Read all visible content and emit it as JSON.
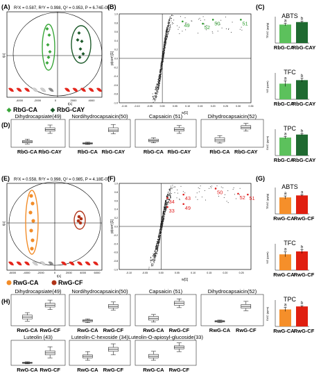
{
  "panels": {
    "A": {
      "label": "(A)",
      "stats": "R²X = 0.587, R²Y = 0.998, Q² = 0.953, P = 6.74E-05",
      "x_label": "t[1]",
      "y_label": "t[o]",
      "x_ticks": [
        "-4000",
        "-2000",
        "0",
        "2000",
        "4000"
      ],
      "legend": [
        {
          "label": "RbG-CA",
          "color": "#39a639"
        },
        {
          "label": "RbG-CAY",
          "color": "#1c5a2a"
        }
      ]
    },
    "B": {
      "label": "(B)",
      "x_label": "w[1]",
      "y_label": "p(corr)[1]",
      "x_ticks": [
        "-0.15",
        "-0.10",
        "-0.05",
        "0.00",
        "0.05",
        "0.10",
        "0.15",
        "0.20",
        "0.25",
        "0.30",
        "0.35"
      ],
      "y_ticks": [
        "1.0",
        "0.8",
        "0.6",
        "0.4",
        "0.2",
        "0.0",
        "-0.2",
        "-0.4",
        "-0.6",
        "-0.8",
        "-1.0"
      ],
      "labels": [
        {
          "text": "50",
          "color": "#2e9c2e"
        },
        {
          "text": "51",
          "color": "#2e9c2e"
        },
        {
          "text": "49",
          "color": "#2e9c2e"
        },
        {
          "text": "52",
          "color": "#2e9c2e"
        }
      ]
    },
    "C": {
      "label": "(C)",
      "charts": [
        {
          "title": "ABTS",
          "ylabel": "TEAC (μg/g)",
          "cats": [
            "RbG-CA",
            "RbG-CAY"
          ],
          "values": [
            0.185,
            0.21
          ],
          "errors": [
            0.012,
            0.008
          ],
          "sig": [
            "a",
            "b"
          ],
          "ymax": 0.25,
          "colors": [
            "#5cc15c",
            "#1f6a31"
          ]
        },
        {
          "title": "TFC",
          "ylabel": "NE (ppm)",
          "cats": [
            "RbG-CA",
            "RbG-CAY"
          ],
          "values": [
            9.4,
            11.5
          ],
          "errors": [
            1.7,
            1.1
          ],
          "sig": [
            "a",
            "b"
          ],
          "ymax": 15,
          "colors": [
            "#5cc15c",
            "#1f6a31"
          ]
        },
        {
          "title": "TPC",
          "ylabel": "GAC (ppm)",
          "cats": [
            "RbG-CA",
            "RbG-CAY"
          ],
          "values": [
            36,
            42
          ],
          "errors": [
            2.2,
            1.8
          ],
          "sig": [
            "a",
            "b"
          ],
          "ymax": 50,
          "colors": [
            "#5cc15c",
            "#1f6a31"
          ]
        }
      ]
    },
    "D": {
      "label": "(D)",
      "boxes": [
        {
          "title": "Dihydrocapsiate(49)",
          "cats": [
            "RbG-CA",
            "RbG-CAY"
          ],
          "stats": [
            [
              0.12,
              0.16,
              0.2,
              0.24,
              0.29
            ],
            [
              0.5,
              0.58,
              0.64,
              0.7,
              0.8
            ]
          ]
        },
        {
          "title": "Nordihydrocapsaicin(50)",
          "cats": [
            "RbG-CA",
            "RbG-CAY"
          ],
          "stats": [
            [
              0.1,
              0.12,
              0.14,
              0.16,
              0.18
            ],
            [
              0.48,
              0.56,
              0.62,
              0.7,
              0.82
            ]
          ]
        },
        {
          "title": "Capsaicin (51)",
          "cats": [
            "RbG-CA",
            "RbG-CAY"
          ],
          "stats": [
            [
              0.16,
              0.2,
              0.24,
              0.29,
              0.34
            ],
            [
              0.5,
              0.58,
              0.64,
              0.7,
              0.78
            ]
          ]
        },
        {
          "title": "Dihydrocapsaicin(52)",
          "cats": [
            "RbG-CA",
            "RbG-CAY"
          ],
          "stats": [
            [
              0.15,
              0.2,
              0.26,
              0.34,
              0.42
            ],
            [
              0.58,
              0.66,
              0.72,
              0.78,
              0.86
            ]
          ]
        }
      ]
    },
    "E": {
      "label": "(E)",
      "stats": "R²X = 0.558, R²Y = 0.998, Q² = 0.985, P = 4.18E-07",
      "x_label": "t[1]",
      "y_label": "t[o]",
      "x_ticks": [
        "-6000",
        "-4000",
        "-2000",
        "0",
        "2000",
        "4000",
        "6000"
      ],
      "legend": [
        {
          "label": "RwG-CA",
          "color": "#f28c28"
        },
        {
          "label": "RwG-CF",
          "color": "#b03318"
        }
      ]
    },
    "F": {
      "label": "(F)",
      "x_label": "w[1]",
      "y_label": "p(corr)[1]",
      "x_ticks": [
        "-0.10",
        "-0.05",
        "0.00",
        "0.05",
        "0.10",
        "0.15",
        "0.20",
        "0.25"
      ],
      "y_ticks": [
        "1.0",
        "0.8",
        "0.6",
        "0.4",
        "0.2",
        "0.0",
        "-0.2",
        "-0.4",
        "-0.6",
        "-0.8",
        "-1.0"
      ],
      "labels": [
        {
          "text": "50",
          "color": "#e02020"
        },
        {
          "text": "43",
          "color": "#e02020"
        },
        {
          "text": "52",
          "color": "#e02020"
        },
        {
          "text": "51",
          "color": "#e02020"
        },
        {
          "text": "34",
          "color": "#e02020"
        },
        {
          "text": "49",
          "color": "#e02020"
        },
        {
          "text": "33",
          "color": "#e02020"
        }
      ]
    },
    "G": {
      "label": "(G)",
      "charts": [
        {
          "title": "ABTS",
          "ylabel": "TEAC (μg/g)",
          "cats": [
            "RwG-CA",
            "RwG-CF"
          ],
          "values": [
            0.165,
            0.185
          ],
          "errors": [
            0.015,
            0.007
          ],
          "sig": [
            "a",
            "a"
          ],
          "ymax": 0.25,
          "colors": [
            "#f58f2a",
            "#e01f10"
          ]
        },
        {
          "title": "TFC",
          "ylabel": "NE (ppm)",
          "cats": [
            "RwG-CA",
            "RwG-CF"
          ],
          "values": [
            7.6,
            9.0
          ],
          "errors": [
            1.2,
            0.9
          ],
          "sig": [
            "a",
            "b"
          ],
          "ymax": 12,
          "colors": [
            "#f58f2a",
            "#e01f10"
          ]
        },
        {
          "title": "TPC",
          "ylabel": "GAC (ppm)",
          "cats": [
            "RwG-CA",
            "RwG-CF"
          ],
          "values": [
            34,
            40
          ],
          "errors": [
            4,
            1.5
          ],
          "sig": [
            "a",
            "b"
          ],
          "ymax": 50,
          "colors": [
            "#f58f2a",
            "#e01f10"
          ]
        }
      ]
    },
    "H": {
      "label": "(H)",
      "boxes": [
        {
          "title": "Dihydrocapsiate(49)",
          "cats": [
            "RwG-CA",
            "RwG-CF"
          ],
          "stats": [
            [
              0.15,
              0.22,
              0.28,
              0.34,
              0.42
            ],
            [
              0.52,
              0.6,
              0.66,
              0.72,
              0.82
            ]
          ]
        },
        {
          "title": "Nordihydrocapsaicin(50)",
          "cats": [
            "RwG-CA",
            "RwG-CF"
          ],
          "stats": [
            [
              0.1,
              0.13,
              0.16,
              0.19,
              0.22
            ],
            [
              0.5,
              0.57,
              0.62,
              0.68,
              0.76
            ]
          ]
        },
        {
          "title": "Capsaicin (51)",
          "cats": [
            "RwG-CA",
            "RwG-CF"
          ],
          "stats": [
            [
              0.12,
              0.18,
              0.24,
              0.3,
              0.36
            ],
            [
              0.58,
              0.66,
              0.72,
              0.78,
              0.86
            ]
          ]
        },
        {
          "title": "Dihydrocapsaicin(52)",
          "cats": [
            "RwG-CA",
            "RwG-CF"
          ],
          "stats": [
            [
              0.1,
              0.12,
              0.14,
              0.16,
              0.18
            ],
            [
              0.48,
              0.56,
              0.62,
              0.68,
              0.78
            ]
          ]
        },
        {
          "title": "Luteolin (43)",
          "cats": [
            "RwG-CA",
            "RwG-CF"
          ],
          "stats": [
            [
              0.06,
              0.08,
              0.1,
              0.12,
              0.14
            ],
            [
              0.3,
              0.42,
              0.5,
              0.58,
              0.74
            ]
          ]
        },
        {
          "title": "Luteolin-C-hexoside (34)",
          "cats": [
            "RwG-CA",
            "RwG-CF"
          ],
          "stats": [
            [
              0.2,
              0.3,
              0.36,
              0.42,
              0.55
            ],
            [
              0.42,
              0.56,
              0.64,
              0.72,
              0.86
            ]
          ]
        },
        {
          "title": "Luteolin-O-apiosyl-glucoside(33)",
          "cats": [
            "RwG-CA",
            "RwG-CF"
          ],
          "stats": [
            [
              0.2,
              0.3,
              0.36,
              0.44,
              0.56
            ],
            [
              0.55,
              0.66,
              0.72,
              0.78,
              0.9
            ]
          ]
        }
      ]
    }
  },
  "chart_data": [
    {
      "panel": "B",
      "type": "scatter",
      "xlabel": "w[1]",
      "ylabel": "p(corr)[1]",
      "xlim": [
        -0.17,
        0.35
      ],
      "ylim": [
        -1.0,
        1.0
      ],
      "labeled_points": [
        {
          "label": "50",
          "x": 0.2,
          "y": 0.87
        },
        {
          "label": "51",
          "x": 0.31,
          "y": 0.87
        },
        {
          "label": "49",
          "x": 0.08,
          "y": 0.83
        },
        {
          "label": "52",
          "x": 0.16,
          "y": 0.78
        }
      ]
    },
    {
      "panel": "C",
      "type": "bar",
      "title": "ABTS",
      "ylabel": "TEAC (μg/g)",
      "categories": [
        "RbG-CA",
        "RbG-CAY"
      ],
      "values": [
        0.185,
        0.21
      ]
    },
    {
      "panel": "C",
      "type": "bar",
      "title": "TFC",
      "ylabel": "NE (ppm)",
      "categories": [
        "RbG-CA",
        "RbG-CAY"
      ],
      "values": [
        9.4,
        11.5
      ]
    },
    {
      "panel": "C",
      "type": "bar",
      "title": "TPC",
      "ylabel": "GAC (ppm)",
      "categories": [
        "RbG-CA",
        "RbG-CAY"
      ],
      "values": [
        36,
        42
      ]
    },
    {
      "panel": "F",
      "type": "scatter",
      "xlabel": "w[1]",
      "ylabel": "p(corr)[1]",
      "xlim": [
        -0.13,
        0.28
      ],
      "ylim": [
        -1.0,
        1.0
      ],
      "labeled_points": [
        {
          "label": "50",
          "x": 0.17,
          "y": 0.88
        },
        {
          "label": "43",
          "x": 0.07,
          "y": 0.74
        },
        {
          "label": "52",
          "x": 0.24,
          "y": 0.76
        },
        {
          "label": "51",
          "x": 0.27,
          "y": 0.74
        },
        {
          "label": "34",
          "x": 0.02,
          "y": 0.66
        },
        {
          "label": "49",
          "x": 0.07,
          "y": 0.52
        },
        {
          "label": "33",
          "x": 0.02,
          "y": 0.45
        }
      ]
    },
    {
      "panel": "G",
      "type": "bar",
      "title": "ABTS",
      "ylabel": "TEAC (μg/g)",
      "categories": [
        "RwG-CA",
        "RwG-CF"
      ],
      "values": [
        0.165,
        0.185
      ]
    },
    {
      "panel": "G",
      "type": "bar",
      "title": "TFC",
      "ylabel": "NE (ppm)",
      "categories": [
        "RwG-CA",
        "RwG-CF"
      ],
      "values": [
        7.6,
        9.0
      ]
    },
    {
      "panel": "G",
      "type": "bar",
      "title": "TPC",
      "ylabel": "GAC (ppm)",
      "categories": [
        "RwG-CA",
        "RwG-CF"
      ],
      "values": [
        34,
        40
      ]
    }
  ]
}
